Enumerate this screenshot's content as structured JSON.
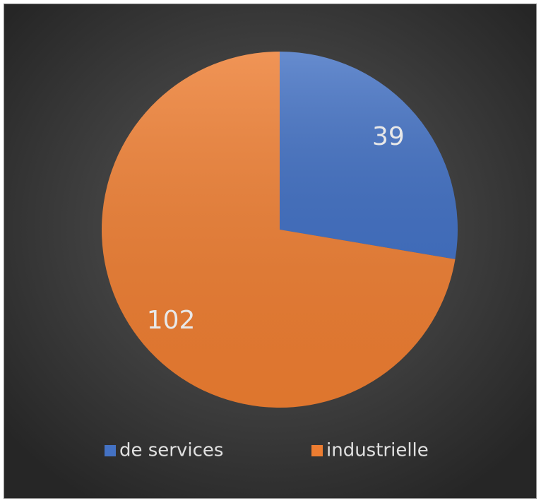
{
  "chart_data": {
    "type": "pie",
    "categories": [
      "de services",
      "industrielle"
    ],
    "values": [
      39,
      102
    ],
    "colors": [
      "#4472c4",
      "#ed7d31"
    ],
    "legend": "bottom"
  }
}
